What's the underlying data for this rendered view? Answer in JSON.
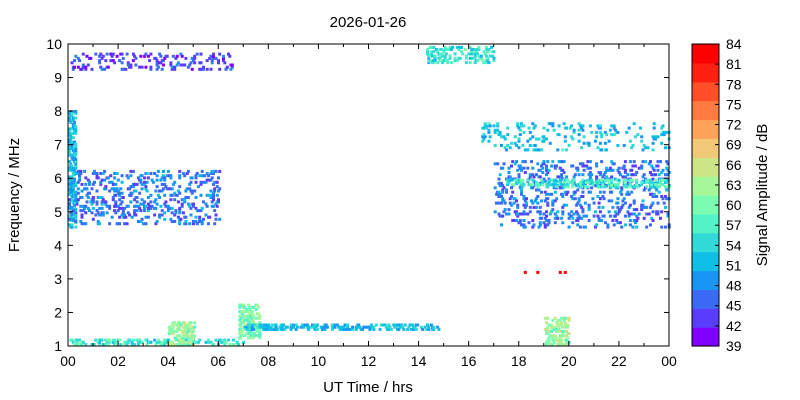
{
  "chart_data": {
    "type": "heatmap",
    "title": "2026-01-26",
    "xlabel": "UT Time / hrs",
    "ylabel": "Frequency / MHz",
    "colorbar_label": "Signal Amplitude / dB",
    "xlim": [
      0,
      24
    ],
    "ylim": [
      1,
      10
    ],
    "x_ticks": [
      "00",
      "02",
      "04",
      "06",
      "08",
      "10",
      "12",
      "14",
      "16",
      "18",
      "20",
      "22",
      "00"
    ],
    "y_ticks": [
      "1",
      "2",
      "3",
      "4",
      "5",
      "6",
      "7",
      "8",
      "9",
      "10"
    ],
    "colorbar_ticks": [
      "39",
      "42",
      "45",
      "48",
      "51",
      "54",
      "57",
      "60",
      "63",
      "66",
      "69",
      "72",
      "75",
      "78",
      "81",
      "84"
    ],
    "colorbar_range": [
      39,
      84
    ],
    "colorbar_colors": [
      "#8000ff",
      "#5a3cfd",
      "#3b6af4",
      "#1996f3",
      "#0fbfe6",
      "#31dad6",
      "#52f3c6",
      "#7cfcb0",
      "#a6f79a",
      "#cde586",
      "#f0c878",
      "#ffa25a",
      "#ff7a40",
      "#ff4f28",
      "#ff2012",
      "#ff0000"
    ],
    "grid": false,
    "regions": [
      {
        "time": [
          0.0,
          0.3
        ],
        "freq": [
          4.5,
          8.0
        ],
        "amp": 52,
        "density": 0.5
      },
      {
        "time": [
          0.0,
          6.0
        ],
        "freq": [
          4.6,
          6.2
        ],
        "amp": 47,
        "density": 0.15
      },
      {
        "time": [
          0.0,
          6.5
        ],
        "freq": [
          9.2,
          9.7
        ],
        "amp": 44,
        "density": 0.12
      },
      {
        "time": [
          0.0,
          7.0
        ],
        "freq": [
          1.0,
          1.15
        ],
        "amp": 56,
        "density": 0.3
      },
      {
        "time": [
          4.0,
          5.0
        ],
        "freq": [
          1.0,
          1.7
        ],
        "amp": 62,
        "density": 0.45
      },
      {
        "time": [
          6.8,
          7.6
        ],
        "freq": [
          1.2,
          2.2
        ],
        "amp": 60,
        "density": 0.45
      },
      {
        "time": [
          7.0,
          14.8
        ],
        "freq": [
          1.45,
          1.6
        ],
        "amp": 52,
        "density": 0.35
      },
      {
        "time": [
          14.3,
          17.0
        ],
        "freq": [
          9.4,
          9.9
        ],
        "amp": 55,
        "density": 0.3
      },
      {
        "time": [
          17.0,
          24.0
        ],
        "freq": [
          4.5,
          6.5
        ],
        "amp": 47,
        "density": 0.14
      },
      {
        "time": [
          17.5,
          24.0
        ],
        "freq": [
          5.7,
          5.9
        ],
        "amp": 56,
        "density": 0.35
      },
      {
        "time": [
          19.0,
          20.0
        ],
        "freq": [
          1.0,
          1.8
        ],
        "amp": 62,
        "density": 0.4
      },
      {
        "time": [
          16.5,
          24.0
        ],
        "freq": [
          6.8,
          7.6
        ],
        "amp": 52,
        "density": 0.1
      }
    ],
    "strong_points": [
      {
        "time": 18.2,
        "freq": 3.15,
        "amp": 84
      },
      {
        "time": 18.7,
        "freq": 3.15,
        "amp": 84
      },
      {
        "time": 19.6,
        "freq": 3.15,
        "amp": 84
      },
      {
        "time": 19.8,
        "freq": 3.15,
        "amp": 84
      }
    ]
  }
}
